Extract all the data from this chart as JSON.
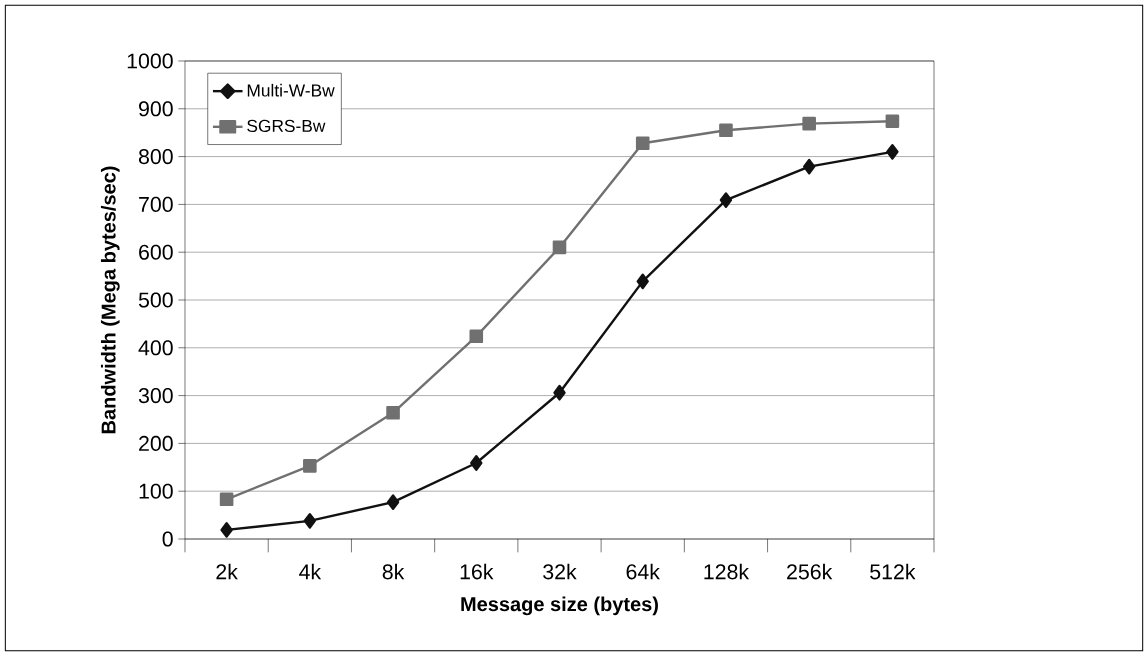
{
  "chart_data": {
    "type": "line",
    "xlabel": "Message size (bytes)",
    "ylabel": "Bandwidth (Mega bytes/sec)",
    "categories": [
      "2k",
      "4k",
      "8k",
      "16k",
      "32k",
      "64k",
      "128k",
      "256k",
      "512k"
    ],
    "series": [
      {
        "name": "Multi-W-Bw",
        "color": "#111111",
        "marker": "diamond",
        "values": [
          19,
          38,
          77,
          159,
          306,
          539,
          709,
          779,
          810
        ]
      },
      {
        "name": "SGRS-Bw",
        "color": "#707070",
        "marker": "square",
        "values": [
          83,
          153,
          264,
          424,
          610,
          828,
          855,
          869,
          874
        ]
      }
    ],
    "ylim": [
      0,
      1000
    ],
    "yticks": [
      0,
      100,
      200,
      300,
      400,
      500,
      600,
      700,
      800,
      900,
      1000
    ],
    "grid": "y",
    "legend": "top left",
    "line_style": "solid"
  }
}
